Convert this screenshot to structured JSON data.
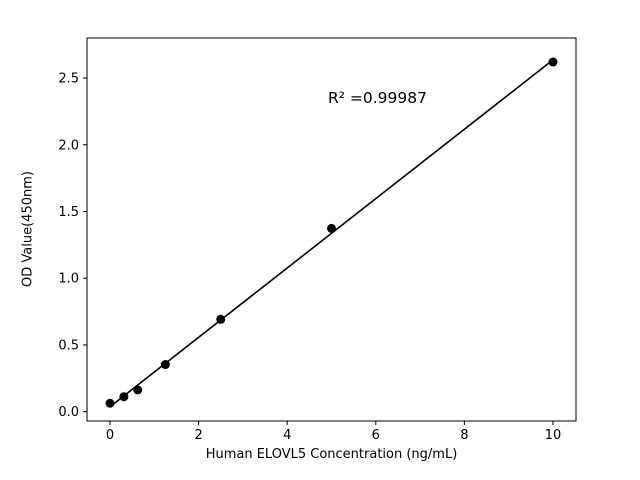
{
  "chart_data": {
    "type": "scatter",
    "title": "",
    "xlabel": "Human ELOVL5 Concentration (ng/mL)",
    "ylabel": "OD Value(450nm)",
    "annotation": "R² =0.99987",
    "x": [
      0,
      0.3125,
      0.625,
      1.25,
      2.5,
      5,
      10
    ],
    "y": [
      0.063,
      0.112,
      0.163,
      0.353,
      0.692,
      1.373,
      2.62
    ],
    "x_ticks": [
      0,
      2,
      4,
      6,
      8,
      10
    ],
    "y_ticks": [
      0.0,
      0.5,
      1.0,
      1.5,
      2.0,
      2.5
    ],
    "xlim": [
      -0.52,
      10.52
    ],
    "ylim": [
      -0.07,
      2.8
    ],
    "fit_line": true,
    "grid": false,
    "legend": "none",
    "marker_color": "#000000",
    "line_color": "#000000",
    "axis_color": "#000000",
    "background": "#ffffff"
  }
}
